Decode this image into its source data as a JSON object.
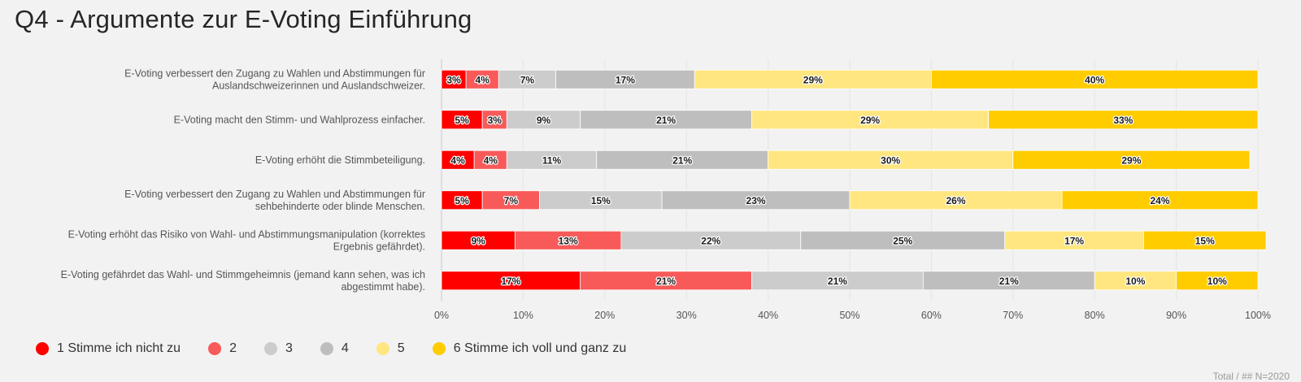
{
  "page": {
    "title": "Q4 - Argumente zur E-Voting Einführung",
    "footnote": "Total / ## N=2020"
  },
  "chart_data": {
    "type": "bar",
    "orientation": "horizontal-stacked-100",
    "title": "Q4 - Argumente zur E-Voting Einführung",
    "categories": [
      [
        "E-Voting verbessert den Zugang zu Wahlen und Abstimmungen für",
        "Auslandschweizerinnen und Auslandschweizer."
      ],
      [
        "E-Voting macht den Stimm- und Wahlprozess einfacher."
      ],
      [
        "E-Voting erhöht die Stimmbeteiligung."
      ],
      [
        "E-Voting verbessert den Zugang zu Wahlen und Abstimmungen für",
        "sehbehinderte oder blinde Menschen."
      ],
      [
        "E-Voting erhöht das Risiko von Wahl- und Abstimmungsmanipulation (korrektes",
        "Ergebnis gefährdet)."
      ],
      [
        "E-Voting gefährdet das Wahl- und Stimmgeheimnis (jemand kann sehen, was ich",
        "abgestimmt habe)."
      ]
    ],
    "series": [
      {
        "name": "1 Stimme ich nicht zu",
        "color": "#ff0000",
        "values": [
          3,
          5,
          4,
          5,
          9,
          17
        ]
      },
      {
        "name": "2",
        "color": "#f85a5a",
        "values": [
          4,
          3,
          4,
          7,
          13,
          21
        ]
      },
      {
        "name": "3",
        "color": "#cccccc",
        "values": [
          7,
          9,
          11,
          15,
          22,
          21
        ]
      },
      {
        "name": "4",
        "color": "#bfbebe",
        "values": [
          17,
          21,
          21,
          23,
          25,
          21
        ]
      },
      {
        "name": "5",
        "color": "#ffe680",
        "values": [
          29,
          29,
          30,
          26,
          17,
          10
        ]
      },
      {
        "name": "6 Stimme ich voll und ganz zu",
        "color": "#ffcc00",
        "values": [
          40,
          33,
          29,
          24,
          15,
          10
        ]
      }
    ],
    "xlim": [
      0,
      100
    ],
    "xticks": [
      "0%",
      "10%",
      "20%",
      "30%",
      "40%",
      "50%",
      "60%",
      "70%",
      "80%",
      "90%",
      "100%"
    ],
    "value_suffix": "%",
    "grid": true,
    "legend_position": "bottom-left"
  }
}
